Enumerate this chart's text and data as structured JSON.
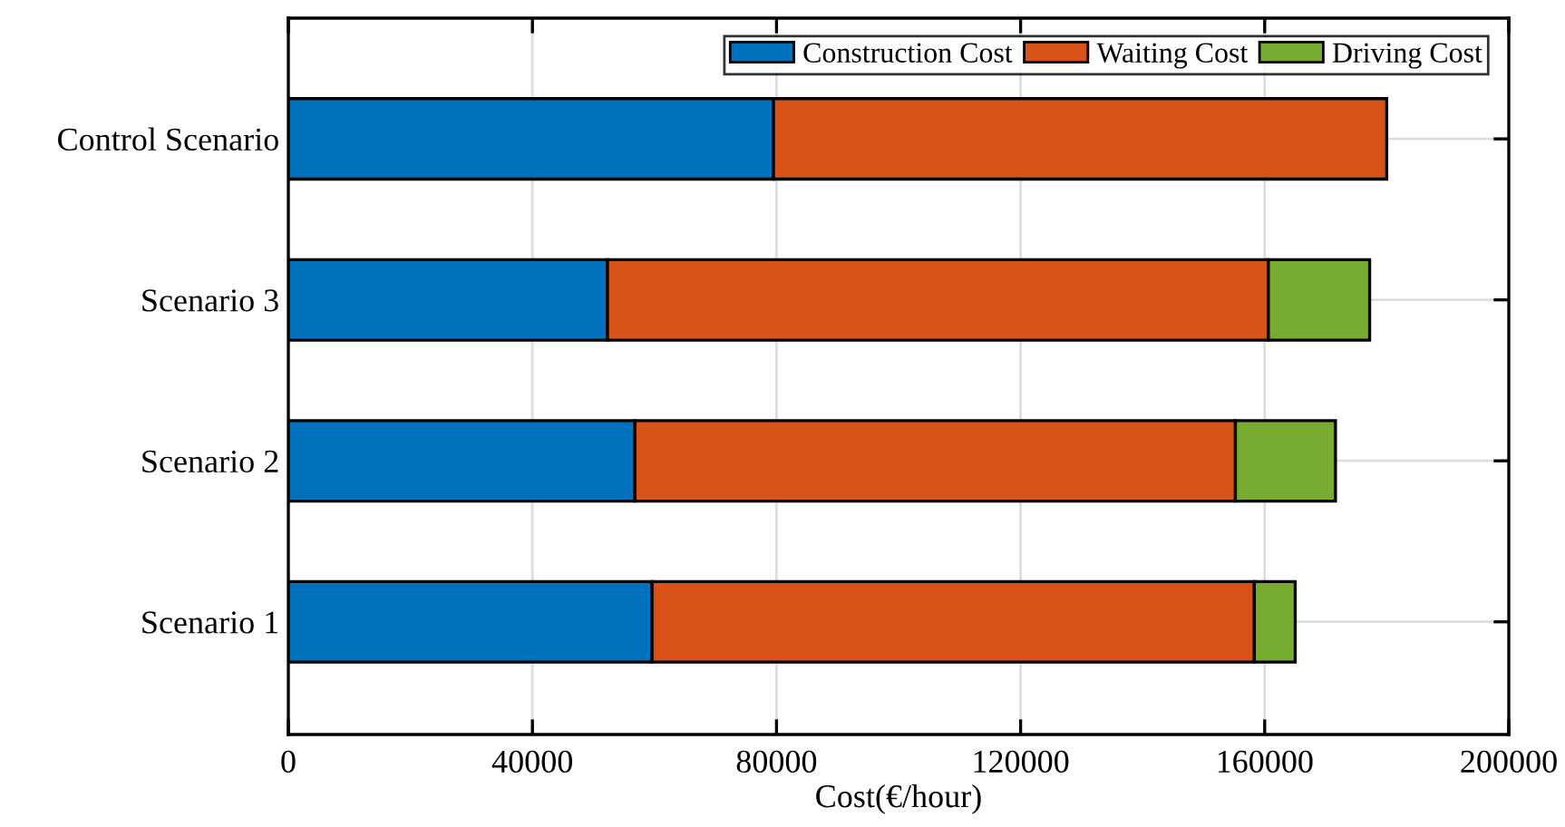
{
  "chart_data": {
    "type": "bar",
    "orientation": "horizontal",
    "stacked": true,
    "xlabel": "Cost(€/hour)",
    "categories": [
      "Control Scenario",
      "Scenario 3",
      "Scenario 2",
      "Scenario 1"
    ],
    "series": [
      {
        "name": "Construction Cost",
        "color": "#0072bd",
        "values": [
          79500,
          52300,
          56800,
          59600
        ]
      },
      {
        "name": "Waiting Cost",
        "color": "#d95319",
        "values": [
          100500,
          108300,
          98400,
          98700
        ]
      },
      {
        "name": "Driving Cost",
        "color": "#77ac30",
        "values": [
          null,
          16600,
          16400,
          6700
        ]
      }
    ],
    "xlim": [
      0,
      200000
    ],
    "xticks": [
      0,
      40000,
      80000,
      120000,
      160000,
      200000
    ],
    "grid": true,
    "legend": "top right"
  }
}
